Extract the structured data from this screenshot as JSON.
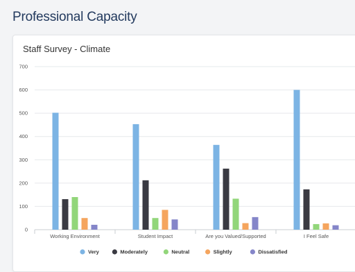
{
  "page": {
    "title": "Professional Capacity"
  },
  "chart_data": {
    "type": "bar",
    "title": "Staff Survey - Climate",
    "xlabel": "",
    "ylabel": "",
    "ylim": [
      0,
      700
    ],
    "yticks": [
      0,
      100,
      200,
      300,
      400,
      500,
      600,
      700
    ],
    "categories": [
      "Working Environment",
      "Student Impact",
      "Are you Valued/Supported",
      "I Feel Safe"
    ],
    "series": [
      {
        "name": "Very",
        "color": "#7cb4e4",
        "values": [
          502,
          453,
          364,
          600
        ]
      },
      {
        "name": "Moderately",
        "color": "#3a3a42",
        "values": [
          131,
          212,
          262,
          173
        ]
      },
      {
        "name": "Neutral",
        "color": "#92d67a",
        "values": [
          140,
          50,
          133,
          24
        ]
      },
      {
        "name": "Slightly",
        "color": "#f5a55e",
        "values": [
          50,
          85,
          28,
          27
        ]
      },
      {
        "name": "Dissatisfied",
        "color": "#8586c9",
        "values": [
          21,
          44,
          54,
          19
        ]
      }
    ],
    "grid": true,
    "legend": "bottom"
  }
}
